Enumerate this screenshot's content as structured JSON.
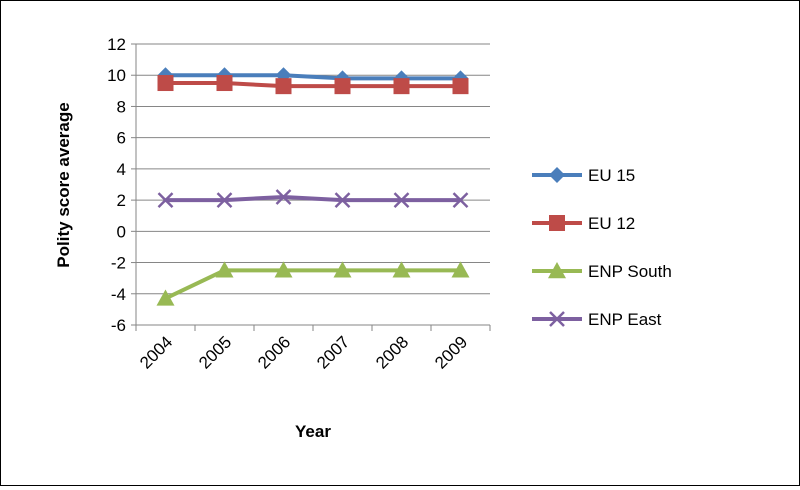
{
  "chart_data": {
    "type": "line",
    "title": "",
    "xlabel": "Year",
    "ylabel": "Polity score average",
    "categories": [
      "2004",
      "2005",
      "2006",
      "2007",
      "2008",
      "2009"
    ],
    "ylim": [
      -6,
      12
    ],
    "yticks": [
      "12",
      "10",
      "8",
      "6",
      "4",
      "2",
      "0",
      "-2",
      "-4",
      "-6"
    ],
    "grid": true,
    "legend_position": "right",
    "series": [
      {
        "name": "EU 15",
        "color": "#4a7ebb",
        "marker": "diamond",
        "values": [
          10,
          10,
          10,
          9.8,
          9.8,
          9.8
        ]
      },
      {
        "name": "EU 12",
        "color": "#be4b48",
        "marker": "square",
        "values": [
          9.5,
          9.5,
          9.3,
          9.3,
          9.3,
          9.3
        ]
      },
      {
        "name": "ENP South",
        "color": "#98b954",
        "marker": "triangle",
        "values": [
          -4.3,
          -2.5,
          -2.5,
          -2.5,
          -2.5,
          -2.5
        ]
      },
      {
        "name": "ENP East",
        "color": "#7d60a0",
        "marker": "x",
        "values": [
          2,
          2,
          2.2,
          2,
          2,
          2
        ]
      }
    ]
  }
}
